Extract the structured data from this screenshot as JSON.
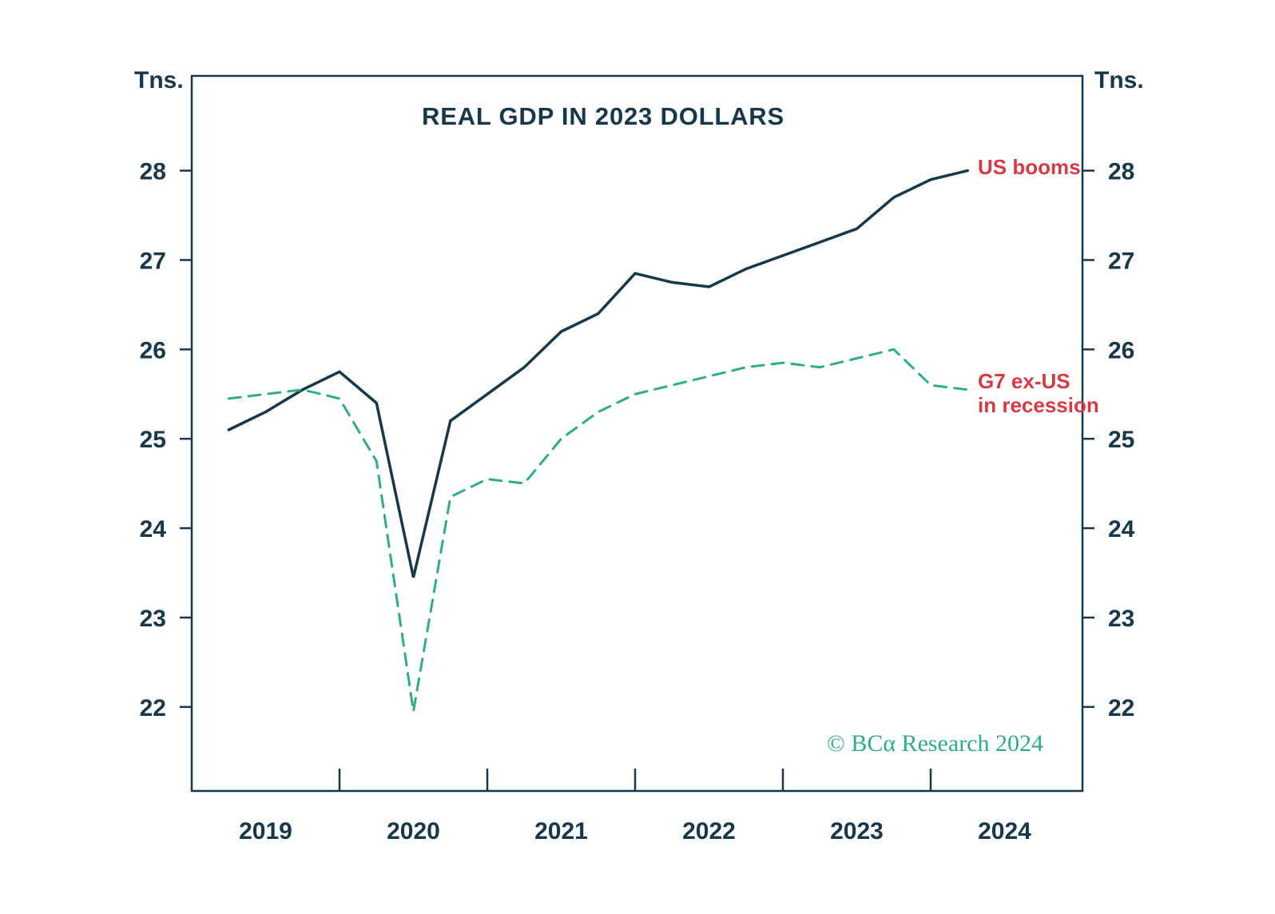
{
  "chart_data": {
    "type": "line",
    "title": "REAL GDP IN 2023 DOLLARS",
    "unit_left": "Tns.",
    "unit_right": "Tns.",
    "x_tick_labels": [
      "2019",
      "2020",
      "2021",
      "2022",
      "2023",
      "2024"
    ],
    "y_ticks": [
      28,
      27,
      26,
      25,
      24,
      23,
      22
    ],
    "ylim": [
      21.06,
      29.06
    ],
    "x_start": 2019.25,
    "x_step": 0.25,
    "grid": false,
    "legend": "inline-annotations",
    "series": [
      {
        "name": "US booms",
        "color": "#17384a",
        "line_style": "solid",
        "values": [
          25.1,
          25.3,
          25.55,
          25.75,
          25.4,
          23.45,
          25.2,
          25.5,
          25.8,
          26.2,
          26.4,
          26.85,
          26.75,
          26.7,
          26.9,
          27.05,
          27.2,
          27.35,
          27.7,
          27.9,
          28.0
        ]
      },
      {
        "name": "G7 ex-US in recession",
        "color": "#2fae80",
        "line_style": "dashed",
        "values": [
          25.45,
          25.5,
          25.55,
          25.45,
          24.75,
          21.95,
          24.35,
          24.55,
          24.5,
          25.0,
          25.3,
          25.5,
          25.6,
          25.7,
          25.8,
          25.85,
          25.8,
          25.9,
          26.0,
          25.6,
          25.55
        ]
      }
    ],
    "annotations": {
      "us": "US booms",
      "g7_line1": "G7 ex-US",
      "g7_line2": "in recession",
      "color": "#d73a45"
    },
    "copyright": "© BCα Research 2024",
    "colors": {
      "axis": "#17384a",
      "tick_text": "#17384a",
      "us_line": "#17384a",
      "g7_line": "#2fae80",
      "annotation": "#d73a45",
      "copyright": "#2fae80"
    }
  }
}
